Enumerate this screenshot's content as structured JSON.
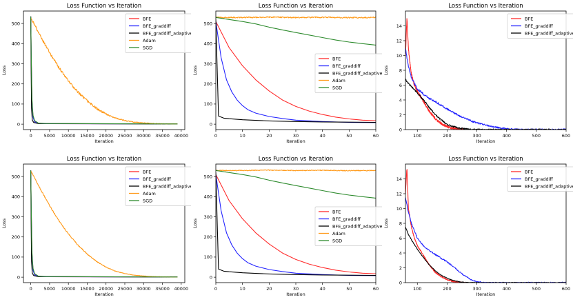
{
  "chart_data": [
    {
      "type": "line",
      "title": "Loss Function vs Iteration",
      "xlabel": "Iteration",
      "ylabel": "Loss",
      "xlim": [
        -1950,
        40950
      ],
      "ylim": [
        -27,
        562
      ],
      "xticks": [
        0,
        5000,
        10000,
        15000,
        20000,
        25000,
        30000,
        35000,
        40000
      ],
      "yticks": [
        0,
        100,
        200,
        300,
        400,
        500
      ],
      "legend": "top-right",
      "series": [
        {
          "name": "BFE",
          "color": "#ff2b2b",
          "x": [
            0,
            150,
            300,
            600,
            1000,
            2000,
            4000,
            39000
          ],
          "y": [
            535,
            300,
            120,
            40,
            15,
            5,
            2,
            1
          ]
        },
        {
          "name": "BFE_graddiff",
          "color": "#2424ff",
          "x": [
            0,
            150,
            300,
            600,
            1000,
            2000,
            4000,
            39000
          ],
          "y": [
            535,
            290,
            110,
            35,
            12,
            4,
            2,
            1
          ]
        },
        {
          "name": "BFE_graddiff_adaptive",
          "color": "#000000",
          "x": [
            0,
            100,
            200,
            400,
            800,
            2000,
            39000
          ],
          "y": [
            535,
            250,
            80,
            20,
            8,
            3,
            1
          ]
        },
        {
          "name": "Adam",
          "color": "#ff9a1a",
          "x": [
            0,
            2500,
            5000,
            7500,
            10000,
            12500,
            15000,
            17500,
            20000,
            22500,
            25000,
            27500,
            30000,
            32500,
            35000,
            37500,
            39000
          ],
          "y": [
            530,
            440,
            355,
            280,
            215,
            160,
            115,
            78,
            50,
            30,
            18,
            10,
            6,
            3,
            2,
            1,
            1
          ],
          "noise": 6
        },
        {
          "name": "SGD",
          "color": "#2e8b2e",
          "x": [
            0,
            150,
            300,
            600,
            1000,
            2000,
            4000,
            39000
          ],
          "y": [
            535,
            300,
            130,
            45,
            18,
            6,
            3,
            1
          ]
        }
      ]
    },
    {
      "type": "line",
      "title": "Loss Function vs Iteration",
      "xlabel": "Iteration",
      "ylabel": "Loss",
      "xlim": [
        0,
        60
      ],
      "ylim": [
        -27,
        562
      ],
      "xticks": [
        0,
        10,
        20,
        30,
        40,
        50,
        60
      ],
      "yticks": [
        0,
        100,
        200,
        300,
        400,
        500
      ],
      "legend": "center-right",
      "series": [
        {
          "name": "BFE",
          "color": "#ff2b2b",
          "x": [
            0,
            5,
            10,
            15,
            20,
            25,
            30,
            35,
            40,
            45,
            50,
            55,
            60
          ],
          "y": [
            510,
            380,
            290,
            220,
            165,
            120,
            88,
            65,
            48,
            35,
            26,
            20,
            17
          ]
        },
        {
          "name": "BFE_graddiff",
          "color": "#2424ff",
          "x": [
            0,
            2,
            4,
            6,
            8,
            10,
            12,
            15,
            20,
            25,
            30,
            40,
            50,
            60
          ],
          "y": [
            510,
            330,
            220,
            160,
            120,
            92,
            72,
            55,
            38,
            28,
            20,
            13,
            9,
            8
          ]
        },
        {
          "name": "BFE_graddiff_adaptive",
          "color": "#000000",
          "x": [
            0,
            1,
            3,
            5,
            10,
            20,
            30,
            40,
            50,
            60
          ],
          "y": [
            520,
            40,
            30,
            27,
            22,
            16,
            13,
            11,
            10,
            9
          ]
        },
        {
          "name": "Adam",
          "color": "#ff9a1a",
          "x": [
            0,
            10,
            20,
            30,
            40,
            50,
            60
          ],
          "y": [
            530,
            530,
            532,
            530,
            531,
            529,
            530
          ],
          "noise": 3
        },
        {
          "name": "SGD",
          "color": "#2e8b2e",
          "x": [
            0,
            5,
            10,
            15,
            20,
            25,
            30,
            35,
            40,
            45,
            50,
            55,
            60
          ],
          "y": [
            530,
            520,
            510,
            498,
            482,
            468,
            455,
            443,
            430,
            418,
            408,
            400,
            393
          ]
        }
      ]
    },
    {
      "type": "line",
      "title": "Loss Function vs Iteration",
      "xlabel": "Iteration",
      "ylabel": "Loss",
      "xlim": [
        60,
        600
      ],
      "ylim": [
        0,
        16
      ],
      "xticks": [
        100,
        200,
        300,
        400,
        500,
        600
      ],
      "yticks": [
        0,
        2,
        4,
        6,
        8,
        10,
        12,
        14
      ],
      "legend": "top-right",
      "series": [
        {
          "name": "BFE",
          "color": "#ff2b2b",
          "x": [
            60,
            65,
            70,
            75,
            80,
            90,
            100,
            120,
            140,
            160,
            180,
            200,
            220,
            240,
            260
          ],
          "y": [
            10,
            15,
            11,
            9,
            7.5,
            6,
            5.2,
            3.8,
            2.5,
            1.5,
            0.8,
            0.4,
            0.15,
            0.05,
            0
          ],
          "noise": 0.6
        },
        {
          "name": "BFE_graddiff",
          "color": "#2424ff",
          "x": [
            60,
            70,
            80,
            100,
            120,
            140,
            160,
            180,
            200,
            220,
            240,
            260,
            280,
            300,
            320,
            340,
            360,
            380,
            400,
            430,
            460,
            600
          ],
          "y": [
            11,
            8.5,
            7,
            5.5,
            4.8,
            4.2,
            3.8,
            3.3,
            2.8,
            2.3,
            1.9,
            1.5,
            1.2,
            0.9,
            0.7,
            0.5,
            0.35,
            0.2,
            0.1,
            0.03,
            0,
            0
          ],
          "noise": 0.45
        },
        {
          "name": "BFE_graddiff_adaptive",
          "color": "#000000",
          "x": [
            60,
            70,
            80,
            100,
            120,
            140,
            160,
            180,
            200,
            220,
            240,
            260,
            280,
            300,
            600
          ],
          "y": [
            6.8,
            6.2,
            5.8,
            5,
            4,
            3,
            2,
            1.3,
            0.7,
            0.4,
            0.2,
            0.1,
            0.03,
            0,
            0
          ],
          "noise": 0.4
        }
      ]
    },
    {
      "type": "line",
      "title": "Loss Function vs Iteration",
      "xlabel": "Iteration",
      "ylabel": "Loss",
      "xlim": [
        -1950,
        40950
      ],
      "ylim": [
        -27,
        562
      ],
      "xticks": [
        0,
        5000,
        10000,
        15000,
        20000,
        25000,
        30000,
        35000,
        40000
      ],
      "yticks": [
        0,
        100,
        200,
        300,
        400,
        500
      ],
      "legend": "top-right",
      "series": [
        {
          "name": "BFE",
          "color": "#ff2b2b",
          "x": [
            0,
            150,
            300,
            600,
            1000,
            2000,
            4000,
            39000
          ],
          "y": [
            530,
            300,
            120,
            40,
            15,
            5,
            2,
            1
          ]
        },
        {
          "name": "BFE_graddiff",
          "color": "#2424ff",
          "x": [
            0,
            150,
            300,
            600,
            1000,
            2000,
            4000,
            39000
          ],
          "y": [
            530,
            290,
            110,
            35,
            12,
            4,
            2,
            1
          ]
        },
        {
          "name": "BFE_graddiff_adaptive",
          "color": "#000000",
          "x": [
            0,
            100,
            200,
            400,
            800,
            2000,
            39000
          ],
          "y": [
            530,
            250,
            80,
            20,
            8,
            3,
            1
          ]
        },
        {
          "name": "Adam",
          "color": "#ff9a1a",
          "x": [
            0,
            2500,
            5000,
            7500,
            10000,
            12500,
            15000,
            17500,
            20000,
            22500,
            25000,
            27500,
            30000,
            32500,
            35000,
            37500,
            39000
          ],
          "y": [
            528,
            440,
            355,
            280,
            215,
            160,
            115,
            78,
            50,
            30,
            18,
            10,
            6,
            3,
            2,
            1,
            1
          ],
          "noise": 2.5
        },
        {
          "name": "SGD",
          "color": "#2e8b2e",
          "x": [
            0,
            150,
            300,
            600,
            1000,
            2000,
            4000,
            39000
          ],
          "y": [
            530,
            300,
            130,
            45,
            18,
            6,
            3,
            1
          ]
        }
      ]
    },
    {
      "type": "line",
      "title": "Loss Function vs Iteration",
      "xlabel": "Iteration",
      "ylabel": "Loss",
      "xlim": [
        0,
        60
      ],
      "ylim": [
        -27,
        562
      ],
      "xticks": [
        0,
        10,
        20,
        30,
        40,
        50,
        60
      ],
      "yticks": [
        0,
        100,
        200,
        300,
        400,
        500
      ],
      "legend": "center-right",
      "series": [
        {
          "name": "BFE",
          "color": "#ff2b2b",
          "x": [
            0,
            5,
            10,
            15,
            20,
            25,
            30,
            35,
            40,
            45,
            50,
            55,
            60
          ],
          "y": [
            510,
            380,
            290,
            220,
            165,
            120,
            88,
            65,
            48,
            35,
            26,
            20,
            17
          ]
        },
        {
          "name": "BFE_graddiff",
          "color": "#2424ff",
          "x": [
            0,
            2,
            4,
            6,
            8,
            10,
            12,
            15,
            20,
            25,
            30,
            40,
            50,
            60
          ],
          "y": [
            510,
            330,
            220,
            160,
            120,
            92,
            72,
            55,
            38,
            28,
            20,
            13,
            9,
            8
          ]
        },
        {
          "name": "BFE_graddiff_adaptive",
          "color": "#000000",
          "x": [
            0,
            1,
            3,
            5,
            10,
            20,
            30,
            40,
            50,
            60
          ],
          "y": [
            520,
            40,
            30,
            27,
            22,
            16,
            13,
            11,
            10,
            9
          ]
        },
        {
          "name": "Adam",
          "color": "#ff9a1a",
          "x": [
            0,
            10,
            20,
            30,
            40,
            50,
            60
          ],
          "y": [
            530,
            530,
            532,
            530,
            531,
            529,
            530
          ],
          "noise": 2
        },
        {
          "name": "SGD",
          "color": "#2e8b2e",
          "x": [
            0,
            5,
            10,
            15,
            20,
            25,
            30,
            35,
            40,
            45,
            50,
            55,
            60
          ],
          "y": [
            530,
            520,
            510,
            498,
            482,
            468,
            455,
            443,
            430,
            418,
            408,
            400,
            393
          ]
        }
      ]
    },
    {
      "type": "line",
      "title": "Loss Function vs Iteration",
      "xlabel": "Iteration",
      "ylabel": "Loss",
      "xlim": [
        60,
        600
      ],
      "ylim": [
        0,
        16
      ],
      "xticks": [
        100,
        200,
        300,
        400,
        500,
        600
      ],
      "yticks": [
        0,
        2,
        4,
        6,
        8,
        10,
        12,
        14
      ],
      "legend": "top-right",
      "series": [
        {
          "name": "BFE",
          "color": "#ff2b2b",
          "x": [
            60,
            65,
            70,
            80,
            90,
            100,
            120,
            140,
            160,
            180,
            200,
            220,
            240,
            260
          ],
          "y": [
            12,
            15.5,
            10,
            7.5,
            6,
            5,
            3.7,
            2.4,
            1.4,
            0.8,
            0.4,
            0.15,
            0.05,
            0
          ],
          "noise": 0.3
        },
        {
          "name": "BFE_graddiff",
          "color": "#2424ff",
          "x": [
            60,
            70,
            80,
            100,
            120,
            140,
            160,
            180,
            200,
            220,
            240,
            260,
            280,
            300,
            330,
            600
          ],
          "y": [
            11.5,
            9.5,
            8,
            6,
            5,
            4.3,
            3.8,
            3.3,
            2.8,
            2.2,
            1.5,
            0.9,
            0.4,
            0.1,
            0,
            0
          ],
          "noise": 0.3
        },
        {
          "name": "BFE_graddiff_adaptive",
          "color": "#000000",
          "x": [
            60,
            70,
            80,
            100,
            120,
            140,
            160,
            180,
            200,
            220,
            240,
            260,
            280,
            600
          ],
          "y": [
            7.5,
            6.5,
            5.8,
            4.5,
            3.4,
            2.4,
            1.6,
            1,
            0.6,
            0.3,
            0.12,
            0.04,
            0,
            0
          ],
          "noise": 0.15
        }
      ]
    }
  ]
}
